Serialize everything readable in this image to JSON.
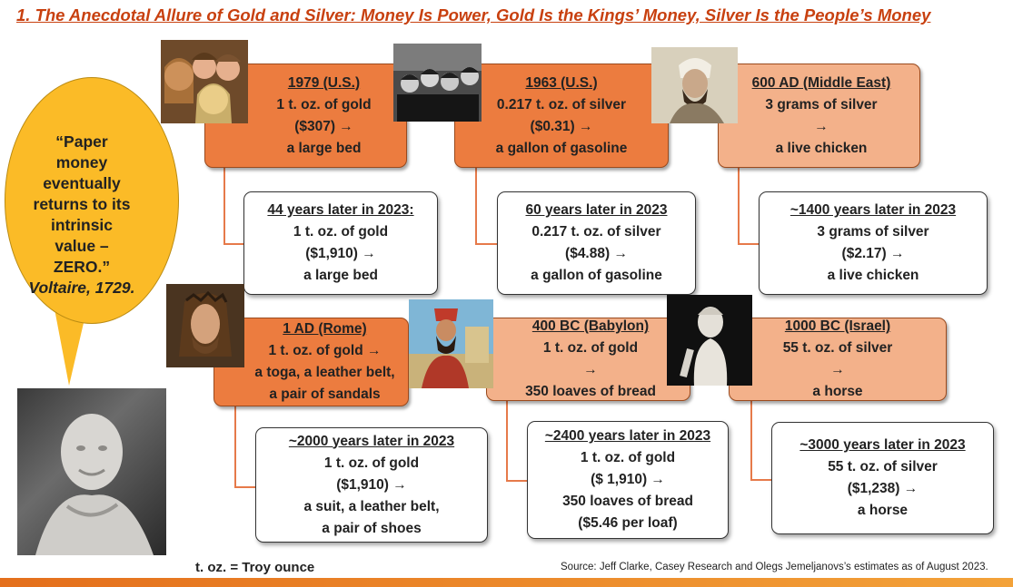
{
  "title": "1. The Anecdotal Allure of Gold and Silver: Money Is Power, Gold Is the Kings’ Money, Silver Is the People’s Money",
  "quote": {
    "line1": "“Paper",
    "line2": "money",
    "line3": "eventually",
    "line4": "returns to its",
    "line5": "intrinsic",
    "line6": "value –",
    "line7": "ZERO.”",
    "author": "Voltaire, 1729."
  },
  "then": [
    {
      "header": "1979 (U.S.)",
      "l1": "1 t. oz. of gold",
      "l2": "($307) →",
      "l3": "a large bed"
    },
    {
      "header": "1963 (U.S.)",
      "l1": "0.217 t. oz. of silver",
      "l2": "($0.31) →",
      "l3": "a gallon of gasoline"
    },
    {
      "header": "600 AD (Middle East)",
      "l1": "3 grams of silver",
      "l2": "→",
      "l3": "a live chicken"
    },
    {
      "header": "1 AD (Rome)",
      "l1": "1 t. oz. of gold →",
      "l2": "a toga, a leather belt,",
      "l3": "a pair of sandals"
    },
    {
      "header": "400 BC (Babylon)",
      "l1": "1 t. oz. of gold",
      "l2": "→",
      "l3": "350 loaves of bread"
    },
    {
      "header": "1000 BC (Israel)",
      "l1": "55 t. oz. of silver",
      "l2": "→",
      "l3": "a horse"
    }
  ],
  "now": [
    {
      "header": "44 years later in 2023:",
      "l1": "1 t. oz. of gold",
      "l2": "($1,910) →",
      "l3": "a large bed"
    },
    {
      "header": "60 years later in 2023",
      "l1": "0.217 t. oz. of silver",
      "l2": "($4.88) →",
      "l3": "a gallon of gasoline"
    },
    {
      "header": "~1400 years later in 2023",
      "l1": "3 grams of silver",
      "l2": "($2.17) →",
      "l3": "a live chicken"
    },
    {
      "header": "~2000 years later in 2023",
      "l1": "1 t. oz. of gold",
      "l2": "($1,910) →",
      "l3": "a suit, a leather belt,",
      "l4": "a pair of shoes"
    },
    {
      "header": "~2400 years later in 2023",
      "l1": "1 t. oz. of gold",
      "l2": "($ 1,910) →",
      "l3": "350 loaves of bread",
      "l4": "($5.46 per loaf)"
    },
    {
      "header": "~3000 years later in 2023",
      "l1": "55 t. oz. of silver",
      "l2": "($1,238) →",
      "l3": "a horse"
    }
  ],
  "footnote": "t. oz. = Troy ounce",
  "source": "Source: Jeff Clarke, Casey Research and Olegs Jemeljanovs’s estimates as of August 2023."
}
